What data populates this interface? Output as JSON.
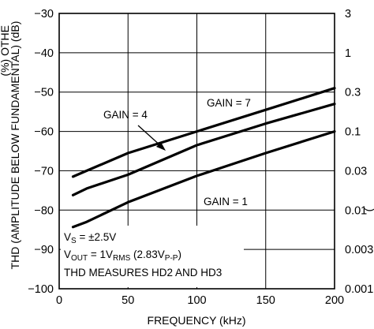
{
  "chart_data": {
    "type": "line",
    "title": "",
    "xlabel": "FREQUENCY (kHz)",
    "ylabel": "THD (AMPLITUDE BELOW FUNDAMENTAL) (dB)",
    "ylabel_cutoff": "(%) OTHE",
    "y2label_cutoff": "(",
    "xlim": [
      0,
      200
    ],
    "ylim": [
      -100,
      -30
    ],
    "x_ticks": [
      "0",
      "50",
      "100",
      "150",
      "200"
    ],
    "y_ticks": [
      "−30",
      "−40",
      "−50",
      "−60",
      "−70",
      "−80",
      "−90",
      "−100"
    ],
    "y2_ticks": [
      {
        "label": "3",
        "db": -30
      },
      {
        "label": "1",
        "db": -40
      },
      {
        "label": "0.3",
        "db": -50
      },
      {
        "label": "0.1",
        "db": -60
      },
      {
        "label": "0.03",
        "db": -70
      },
      {
        "label": "0.01",
        "db": -80
      },
      {
        "label": "0.003",
        "db": -90
      },
      {
        "label": "0.001",
        "db": -100
      }
    ],
    "grid": true,
    "series": [
      {
        "name": "GAIN = 7",
        "x": [
          10,
          20,
          50,
          100,
          150,
          200
        ],
        "y": [
          -71.5,
          -70,
          -65.5,
          -60,
          -54.5,
          -49
        ]
      },
      {
        "name": "GAIN = 4",
        "x": [
          10,
          20,
          50,
          100,
          150,
          200
        ],
        "y": [
          -76.2,
          -74.5,
          -71,
          -63.5,
          -58,
          -53
        ]
      },
      {
        "name": "GAIN = 1",
        "x": [
          10,
          20,
          50,
          100,
          150,
          200
        ],
        "y": [
          -84.3,
          -83,
          -78,
          -71.3,
          -65.5,
          -60
        ]
      }
    ],
    "annotations": [
      {
        "id": "gain7",
        "text": "GAIN = 7"
      },
      {
        "id": "gain4",
        "text": "GAIN = 4"
      },
      {
        "id": "gain1",
        "text": "GAIN = 1"
      }
    ],
    "conditions": {
      "vs": {
        "main": "V",
        "sub": "S",
        "rest": " = ±2.5V"
      },
      "vout": {
        "main": "V",
        "sub": "OUT",
        "rest": " = 1V",
        "sub2": "RMS",
        "rest2": " (2.83V",
        "sub3": "P-P",
        "rest3": ")"
      },
      "thd": "THD MEASURES HD2 AND HD3"
    }
  }
}
